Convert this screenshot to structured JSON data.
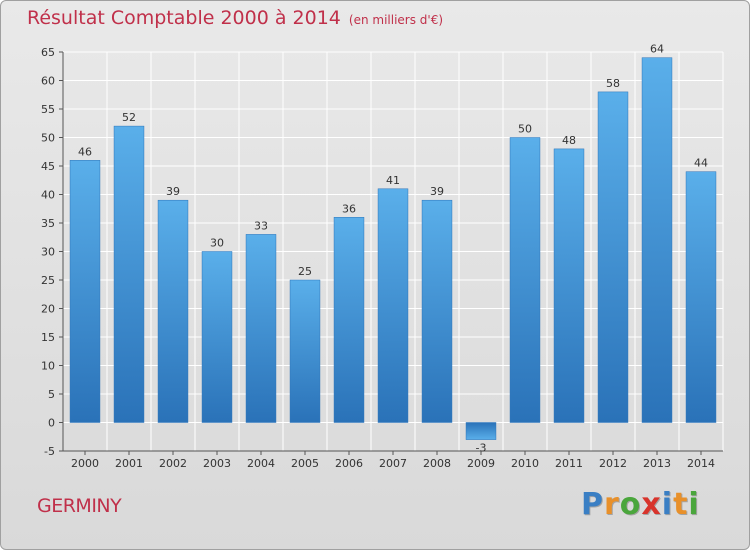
{
  "header": {
    "title": "Résultat Comptable 2000 à 2014",
    "subtitle": "(en milliers d'€)"
  },
  "footer": {
    "city": "GERMINY",
    "logo_letters": [
      "P",
      "r",
      "o",
      "x",
      "i",
      "t",
      "i"
    ],
    "logo_colors": [
      "#3a7fc4",
      "#e8902a",
      "#4aa63c",
      "#d8342c",
      "#3a7fc4",
      "#e8902a",
      "#4aa63c"
    ]
  },
  "chart_data": {
    "type": "bar",
    "categories": [
      "2000",
      "2001",
      "2002",
      "2003",
      "2004",
      "2005",
      "2006",
      "2007",
      "2008",
      "2009",
      "2010",
      "2011",
      "2012",
      "2013",
      "2014"
    ],
    "values": [
      46,
      52,
      39,
      30,
      33,
      25,
      36,
      41,
      39,
      -3,
      50,
      48,
      58,
      64,
      44
    ],
    "data_labels": [
      "46",
      "52",
      "39",
      "30",
      "33",
      "25",
      "36",
      "41",
      "39",
      "-3",
      "50",
      "48",
      "58",
      "64",
      "44"
    ],
    "title": "Résultat Comptable 2000 à 2014",
    "subtitle": "(en milliers d'€)",
    "xlabel": "",
    "ylabel": "",
    "ylim": [
      -5,
      65
    ],
    "yticks": [
      -5,
      0,
      5,
      10,
      15,
      20,
      25,
      30,
      35,
      40,
      45,
      50,
      55,
      60,
      65
    ],
    "grid": true,
    "bar_color": "#4a9ee0",
    "bar_color_dark": "#2a72b8"
  }
}
